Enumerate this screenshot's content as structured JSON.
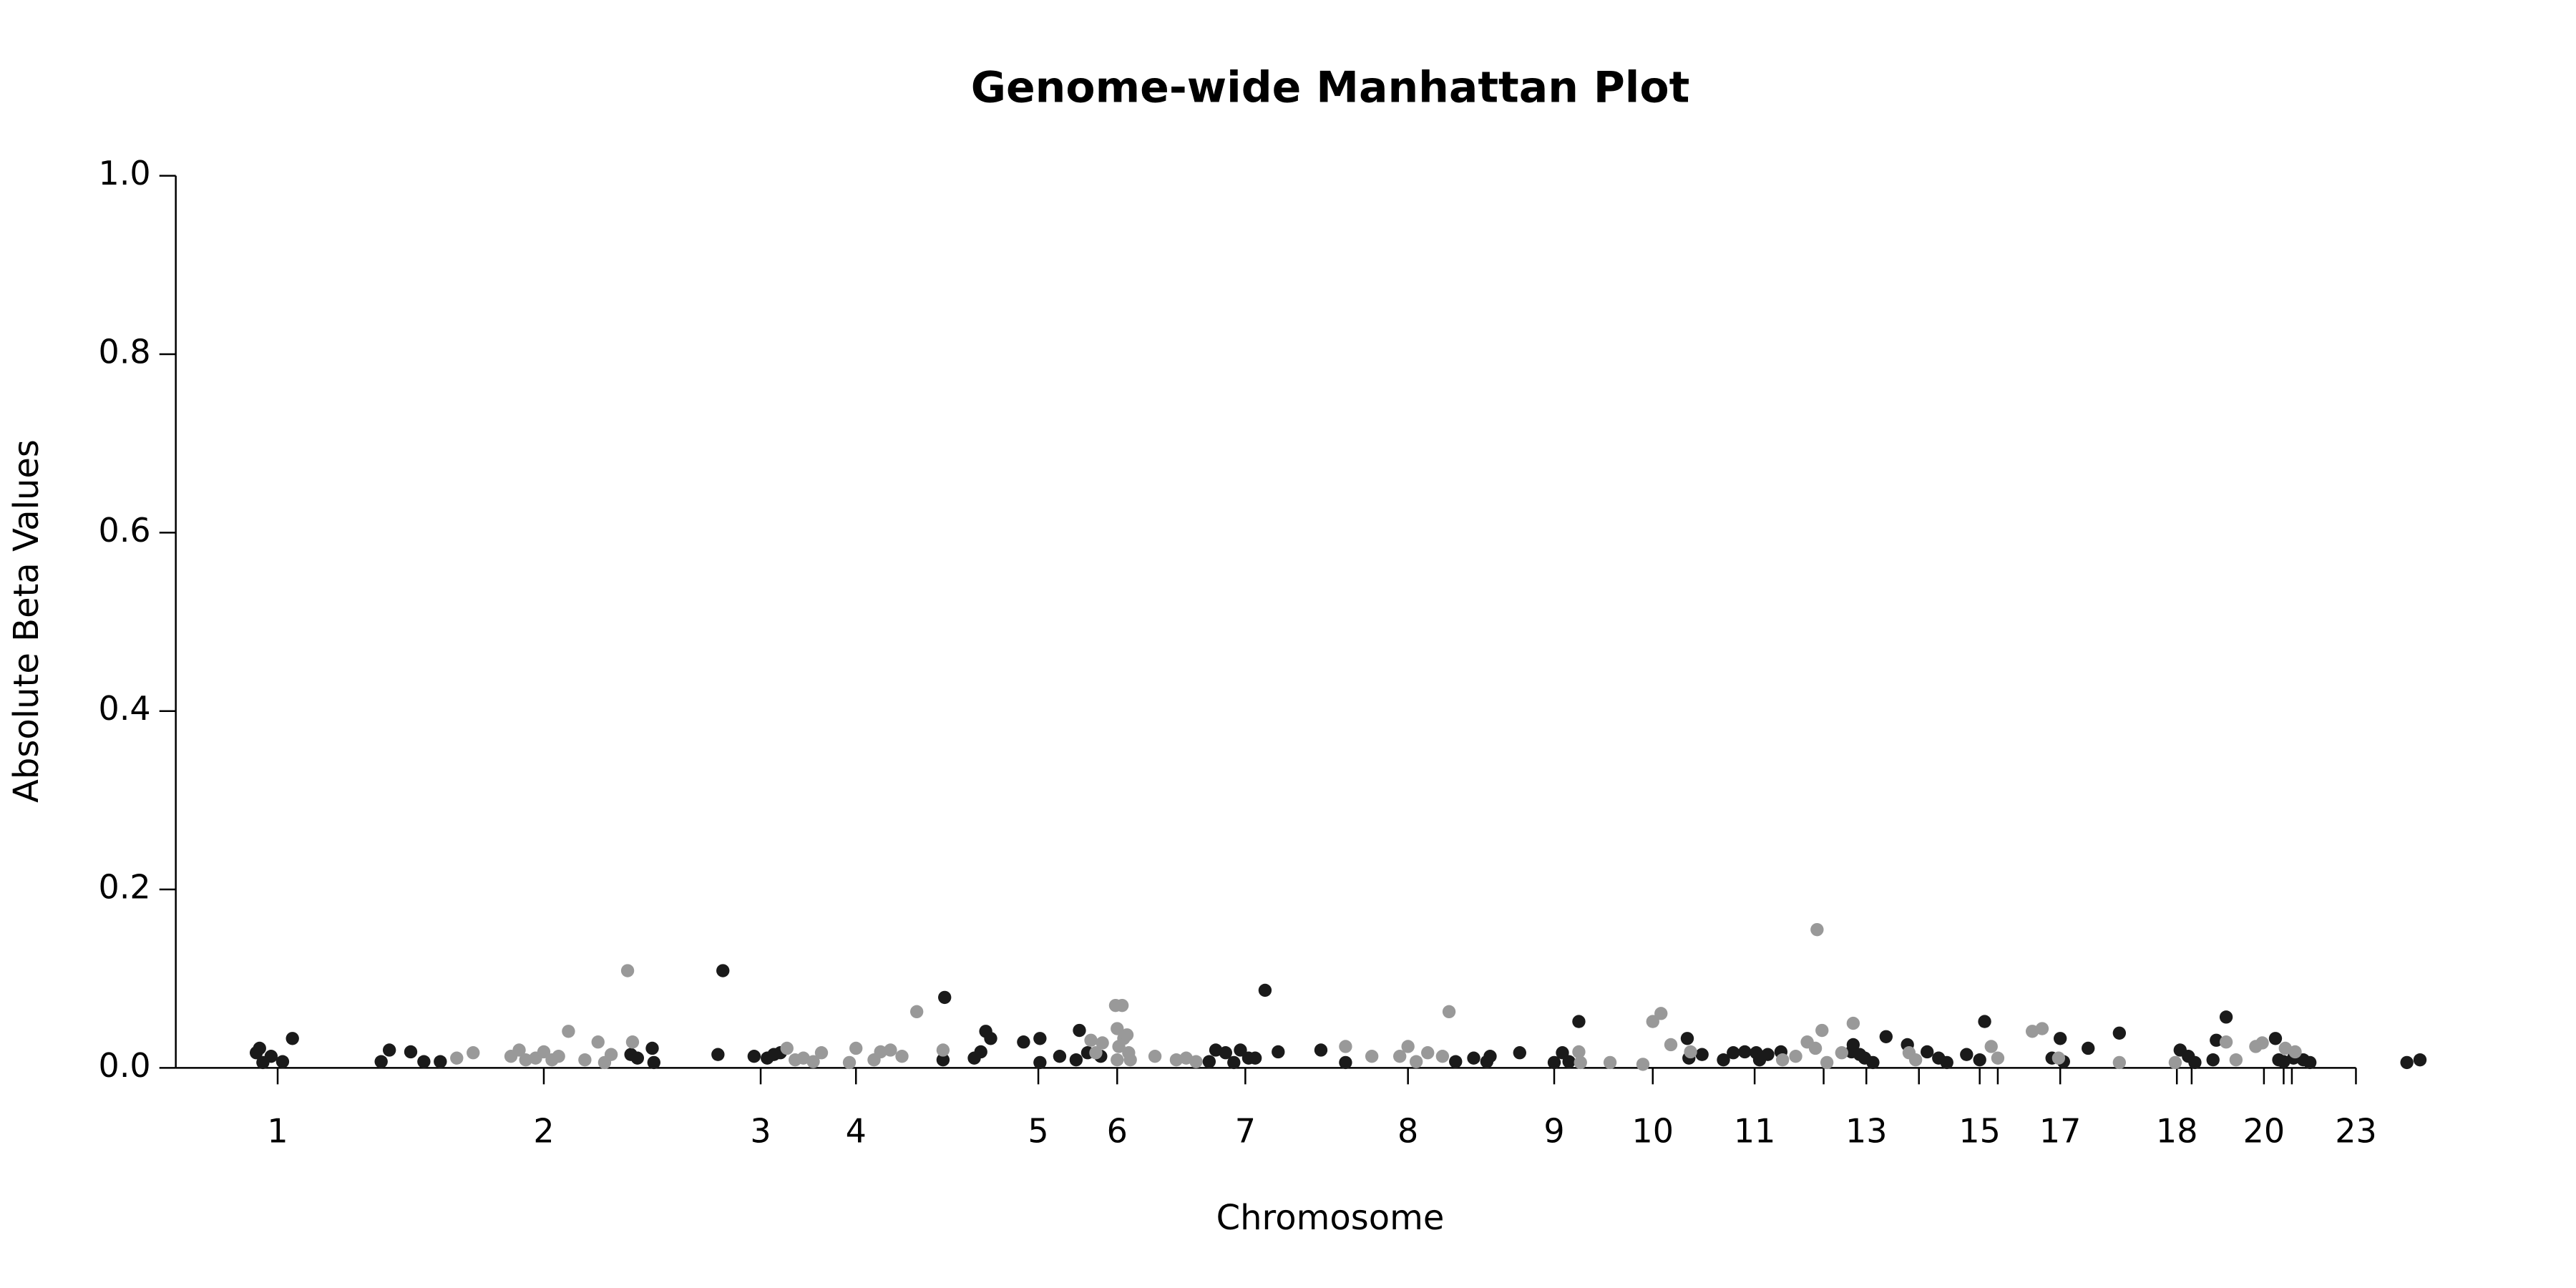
{
  "chart_data": {
    "type": "scatter",
    "title": "Genome-wide Manhattan Plot",
    "x_label": "Chromosome",
    "y_label": "Absolute Beta Values",
    "xlim": [
      0,
      1400
    ],
    "ylim": [
      0,
      1
    ],
    "yticks": [
      {
        "value": 0,
        "label": "0.0"
      },
      0.2,
      0.4,
      0.6,
      0.8,
      {
        "value": 1,
        "label": "1.0"
      }
    ],
    "xticks": [
      {
        "value": 62,
        "label": "1"
      },
      {
        "value": 224,
        "label": "2"
      },
      {
        "value": 356,
        "label": "3"
      },
      {
        "value": 414,
        "label": "4"
      },
      {
        "value": 525,
        "label": "5"
      },
      {
        "value": 573,
        "label": "6"
      },
      {
        "value": 651,
        "label": "7"
      },
      {
        "value": 750,
        "label": "8"
      },
      {
        "value": 839,
        "label": "9"
      },
      {
        "value": 899,
        "label": "10"
      },
      {
        "value": 961,
        "label": "11"
      },
      {
        "value": 1003,
        "label": null
      },
      {
        "value": 1029,
        "label": "13"
      },
      {
        "value": 1061,
        "label": null
      },
      {
        "value": 1098,
        "label": "15"
      },
      {
        "value": 1109,
        "label": null
      },
      {
        "value": 1147,
        "label": "17"
      },
      {
        "value": 1218,
        "label": "18"
      },
      {
        "value": 1227,
        "label": null
      },
      {
        "value": 1271,
        "label": "20"
      },
      {
        "value": 1283,
        "label": null
      },
      {
        "value": 1288,
        "label": null
      },
      {
        "value": 1327,
        "label": "23"
      }
    ],
    "series": [
      {
        "color": "#1a1a1a",
        "x": [
          49,
          53,
          58,
          65,
          71,
          51,
          125,
          130,
          143,
          151,
          161,
          277,
          281,
          290,
          291,
          330,
          333,
          352,
          360,
          364,
          368,
          467,
          468,
          486,
          490,
          493,
          496,
          516,
          526,
          526,
          538,
          548,
          550,
          555,
          563,
          629,
          633,
          639,
          644,
          648,
          653,
          657,
          663,
          671,
          697,
          712,
          779,
          790,
          798,
          800,
          818,
          839,
          844,
          848,
          854,
          920,
          921,
          929,
          942,
          948,
          955,
          962,
          964,
          969,
          977,
          1020,
          1021,
          1025,
          1028,
          1033,
          1041,
          1054,
          1066,
          1073,
          1078,
          1090,
          1098,
          1101,
          1142,
          1147,
          1149,
          1164,
          1183,
          1220,
          1225,
          1229,
          1240,
          1242,
          1248,
          1278,
          1280,
          1283,
          1289,
          1295,
          1299,
          1358,
          1366
        ],
        "values": [
          0.017,
          0.006,
          0.013,
          0.007,
          0.033,
          0.022,
          0.007,
          0.02,
          0.018,
          0.007,
          0.007,
          0.015,
          0.011,
          0.022,
          0.006,
          0.015,
          0.109,
          0.013,
          0.011,
          0.015,
          0.017,
          0.009,
          0.079,
          0.011,
          0.018,
          0.041,
          0.033,
          0.029,
          0.033,
          0.006,
          0.013,
          0.009,
          0.042,
          0.017,
          0.013,
          0.007,
          0.02,
          0.017,
          0.006,
          0.02,
          0.011,
          0.011,
          0.087,
          0.018,
          0.02,
          0.006,
          0.007,
          0.011,
          0.007,
          0.013,
          0.017,
          0.006,
          0.017,
          0.007,
          0.052,
          0.033,
          0.011,
          0.015,
          0.009,
          0.017,
          0.018,
          0.017,
          0.009,
          0.015,
          0.018,
          0.018,
          0.026,
          0.015,
          0.011,
          0.006,
          0.035,
          0.026,
          0.018,
          0.011,
          0.006,
          0.015,
          0.009,
          0.052,
          0.011,
          0.033,
          0.007,
          0.022,
          0.039,
          0.02,
          0.013,
          0.006,
          0.009,
          0.031,
          0.057,
          0.033,
          0.009,
          0.007,
          0.011,
          0.009,
          0.006,
          0.006,
          0.009
        ]
      },
      {
        "color": "#999999",
        "x": [
          171,
          181,
          204,
          209,
          213,
          219,
          224,
          229,
          233,
          239,
          249,
          257,
          261,
          265,
          275,
          278,
          372,
          377,
          382,
          388,
          393,
          410,
          414,
          425,
          429,
          435,
          442,
          451,
          467,
          557,
          560,
          564,
          572,
          576,
          573,
          574,
          577,
          579,
          580,
          581,
          573,
          596,
          609,
          615,
          621,
          712,
          728,
          745,
          750,
          755,
          762,
          771,
          775,
          854,
          855,
          873,
          893,
          899,
          904,
          910,
          922,
          978,
          986,
          993,
          998,
          999,
          1002,
          1005,
          1014,
          1021,
          1055,
          1059,
          1105,
          1109,
          1130,
          1136,
          1146,
          1183,
          1217,
          1248,
          1254,
          1266,
          1270,
          1284,
          1290
        ],
        "values": [
          0.011,
          0.017,
          0.013,
          0.02,
          0.009,
          0.011,
          0.018,
          0.009,
          0.013,
          0.041,
          0.009,
          0.029,
          0.006,
          0.015,
          0.109,
          0.029,
          0.022,
          0.009,
          0.011,
          0.007,
          0.017,
          0.006,
          0.022,
          0.009,
          0.018,
          0.02,
          0.013,
          0.063,
          0.02,
          0.031,
          0.017,
          0.028,
          0.07,
          0.07,
          0.044,
          0.024,
          0.033,
          0.037,
          0.017,
          0.009,
          0.009,
          0.013,
          0.009,
          0.011,
          0.007,
          0.024,
          0.013,
          0.013,
          0.024,
          0.007,
          0.017,
          0.013,
          0.063,
          0.018,
          0.006,
          0.006,
          0.004,
          0.052,
          0.061,
          0.026,
          0.018,
          0.009,
          0.013,
          0.029,
          0.022,
          0.155,
          0.042,
          0.006,
          0.017,
          0.05,
          0.017,
          0.009,
          0.024,
          0.011,
          0.041,
          0.044,
          0.011,
          0.006,
          0.006,
          0.029,
          0.009,
          0.024,
          0.028,
          0.022,
          0.018
        ]
      }
    ]
  }
}
